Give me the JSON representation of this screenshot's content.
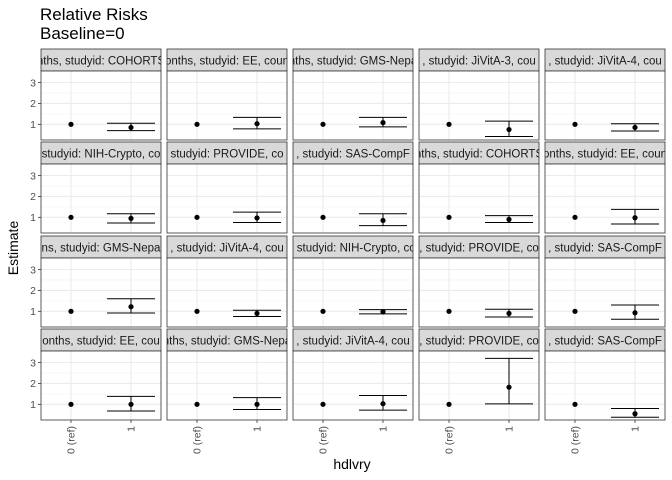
{
  "chart_data": {
    "type": "scatter",
    "title": "Relative Risks",
    "subtitle": "Baseline=0",
    "xlabel": "hdlvry",
    "ylabel": "Estimate",
    "x_categories": [
      "0 (ref)",
      "1"
    ],
    "y_ticks": [
      1,
      2,
      3
    ],
    "ylim": [
      0.25,
      3.55
    ],
    "grid": true,
    "facet_layout": {
      "rows": 4,
      "cols": 5
    },
    "panels": [
      {
        "label": "nths, studyid: COHORTS",
        "ref": 1.0,
        "est": 0.85,
        "lo": 0.7,
        "hi": 1.05
      },
      {
        "label": "onths, studyid: EE, coun",
        "ref": 1.0,
        "est": 1.03,
        "lo": 0.78,
        "hi": 1.33
      },
      {
        "label": "nths, studyid: GMS-Nepa",
        "ref": 1.0,
        "est": 1.08,
        "lo": 0.88,
        "hi": 1.33
      },
      {
        "label": ", studyid: JiVitA-3, cou",
        "ref": 1.0,
        "est": 0.75,
        "lo": 0.42,
        "hi": 1.15
      },
      {
        "label": ", studyid: JiVitA-4, cou",
        "ref": 1.0,
        "est": 0.85,
        "lo": 0.68,
        "hi": 1.03
      },
      {
        "label": "studyid: NIH-Crypto, co",
        "ref": 1.0,
        "est": 0.95,
        "lo": 0.73,
        "hi": 1.17
      },
      {
        "label": "studyid: PROVIDE, co",
        "ref": 1.0,
        "est": 0.97,
        "lo": 0.75,
        "hi": 1.25
      },
      {
        "label": ", studyid: SAS-CompF",
        "ref": 1.0,
        "est": 0.85,
        "lo": 0.6,
        "hi": 1.17
      },
      {
        "label": "nths, studyid: COHORTS",
        "ref": 1.0,
        "est": 0.9,
        "lo": 0.75,
        "hi": 1.08
      },
      {
        "label": "onths, studyid: EE, coun",
        "ref": 1.0,
        "est": 0.98,
        "lo": 0.68,
        "hi": 1.38
      },
      {
        "label": "ns, studyid: GMS-Nepa",
        "ref": 1.0,
        "est": 1.22,
        "lo": 0.92,
        "hi": 1.6
      },
      {
        "label": ", studyid: JiVitA-4, cou",
        "ref": 1.0,
        "est": 0.9,
        "lo": 0.75,
        "hi": 1.05
      },
      {
        "label": ", studyid: NIH-Crypto, co",
        "ref": 1.0,
        "est": 0.98,
        "lo": 0.88,
        "hi": 1.08
      },
      {
        "label": ", studyid: PROVIDE, co",
        "ref": 1.0,
        "est": 0.9,
        "lo": 0.73,
        "hi": 1.1
      },
      {
        "label": ", studyid: SAS-CompF",
        "ref": 1.0,
        "est": 0.93,
        "lo": 0.62,
        "hi": 1.3
      },
      {
        "label": "onths, studyid: EE, cou",
        "ref": 1.0,
        "est": 1.0,
        "lo": 0.68,
        "hi": 1.38
      },
      {
        "label": "nths, studyid: GMS-Nepa",
        "ref": 1.0,
        "est": 1.0,
        "lo": 0.75,
        "hi": 1.32
      },
      {
        "label": ", studyid: JiVitA-4, cou",
        "ref": 1.0,
        "est": 1.03,
        "lo": 0.72,
        "hi": 1.42
      },
      {
        "label": ", studyid: PROVIDE, co",
        "ref": 1.0,
        "est": 1.82,
        "lo": 1.02,
        "hi": 3.2
      },
      {
        "label": ", studyid: SAS-CompF",
        "ref": 1.0,
        "est": 0.55,
        "lo": 0.38,
        "hi": 0.8
      }
    ]
  }
}
